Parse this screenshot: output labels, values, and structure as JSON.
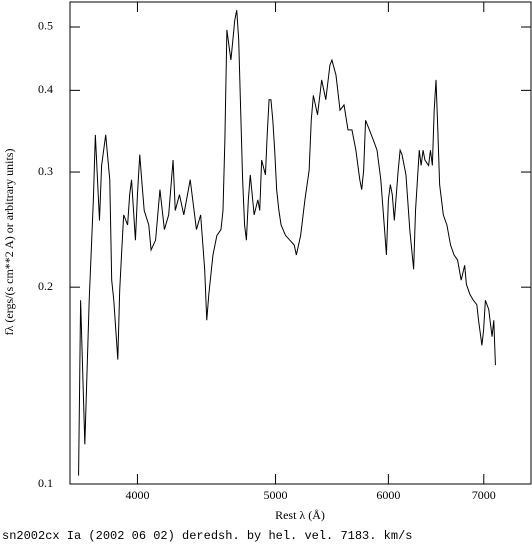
{
  "chart_data": {
    "type": "line",
    "xlabel": "Rest λ (Å)",
    "ylabel": "fλ (ergs/(s cm**2 A) or arbitrary units)",
    "caption": "sn2002cx Ia (2002 06 02) deredsh. by hel. vel.  7183. km/s",
    "xscale": "log",
    "yscale": "log",
    "xlim": [
      3587,
      7555
    ],
    "ylim": [
      0.1,
      0.546
    ],
    "xticks": [
      4000,
      5000,
      6000,
      7000
    ],
    "yticks": [
      0.1,
      0.2,
      0.3,
      0.4,
      0.5
    ],
    "series": [
      {
        "color": "#000000",
        "x": [
          3637,
          3649,
          3674,
          3700,
          3725,
          3737,
          3762,
          3775,
          3800,
          3825,
          3837,
          3850,
          3875,
          3887,
          3900,
          3912,
          3937,
          3950,
          3962,
          3987,
          4000,
          4015,
          4030,
          4044,
          4074,
          4089,
          4119,
          4148,
          4178,
          4207,
          4237,
          4252,
          4281,
          4311,
          4356,
          4400,
          4430,
          4459,
          4474,
          4489,
          4519,
          4548,
          4578,
          4593,
          4607,
          4622,
          4637,
          4652,
          4667,
          4681,
          4696,
          4711,
          4726,
          4741,
          4756,
          4770,
          4785,
          4800,
          4830,
          4859,
          4874,
          4889,
          4919,
          4933,
          4948,
          4963,
          4978,
          4993,
          5009,
          5027,
          5045,
          5081,
          5117,
          5153,
          5171,
          5207,
          5243,
          5279,
          5297,
          5315,
          5351,
          5387,
          5423,
          5459,
          5477,
          5513,
          5549,
          5585,
          5621,
          5657,
          5693,
          5729,
          5747,
          5765,
          5783,
          5819,
          5855,
          5891,
          5927,
          5963,
          5981,
          6000,
          6019,
          6038,
          6058,
          6096,
          6115,
          6134,
          6173,
          6211,
          6250,
          6269,
          6307,
          6326,
          6346,
          6365,
          6403,
          6422,
          6442,
          6461,
          6480,
          6499,
          6518,
          6557,
          6595,
          6634,
          6672,
          6710,
          6749,
          6787,
          6806,
          6845,
          6883,
          6922,
          6941,
          6979,
          6998,
          7018,
          7056,
          7094,
          7114,
          7133
        ],
        "values": [
          0.103,
          0.191,
          0.115,
          0.191,
          0.272,
          0.342,
          0.253,
          0.307,
          0.342,
          0.292,
          0.205,
          0.191,
          0.155,
          0.198,
          0.228,
          0.258,
          0.249,
          0.277,
          0.292,
          0.236,
          0.277,
          0.319,
          0.287,
          0.262,
          0.249,
          0.228,
          0.236,
          0.282,
          0.245,
          0.258,
          0.313,
          0.262,
          0.277,
          0.258,
          0.292,
          0.245,
          0.258,
          0.213,
          0.178,
          0.195,
          0.224,
          0.24,
          0.245,
          0.262,
          0.336,
          0.495,
          0.469,
          0.445,
          0.478,
          0.512,
          0.531,
          0.478,
          0.373,
          0.292,
          0.249,
          0.236,
          0.272,
          0.297,
          0.258,
          0.272,
          0.262,
          0.313,
          0.297,
          0.342,
          0.387,
          0.387,
          0.36,
          0.324,
          0.282,
          0.262,
          0.249,
          0.24,
          0.236,
          0.232,
          0.224,
          0.24,
          0.272,
          0.302,
          0.36,
          0.393,
          0.367,
          0.415,
          0.387,
          0.437,
          0.445,
          0.422,
          0.373,
          0.38,
          0.348,
          0.348,
          0.324,
          0.292,
          0.282,
          0.302,
          0.36,
          0.348,
          0.336,
          0.324,
          0.292,
          0.245,
          0.224,
          0.272,
          0.287,
          0.277,
          0.253,
          0.302,
          0.324,
          0.319,
          0.297,
          0.245,
          0.213,
          0.262,
          0.324,
          0.307,
          0.324,
          0.313,
          0.307,
          0.324,
          0.307,
          0.373,
          0.415,
          0.348,
          0.287,
          0.258,
          0.249,
          0.232,
          0.224,
          0.22,
          0.205,
          0.216,
          0.202,
          0.195,
          0.191,
          0.188,
          0.178,
          0.163,
          0.172,
          0.191,
          0.185,
          0.168,
          0.178,
          0.152
        ]
      }
    ]
  }
}
